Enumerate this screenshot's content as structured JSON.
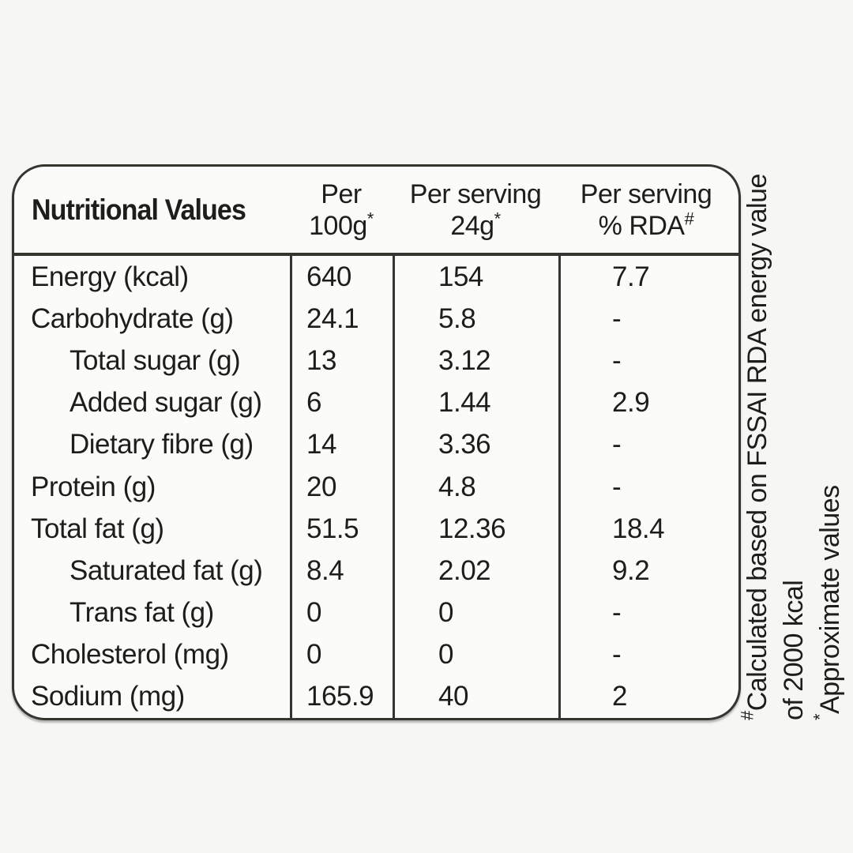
{
  "table": {
    "title": "Nutritional Values",
    "columns": [
      {
        "line1": "Per",
        "line2": "100g",
        "sup": "*"
      },
      {
        "line1": "Per serving",
        "line2": "24g",
        "sup": "*"
      },
      {
        "line1": "Per serving",
        "line2": "% RDA",
        "sup": "#"
      }
    ],
    "rows": [
      {
        "label": "Energy (kcal)",
        "indent": false,
        "per100": "640",
        "serving": "154",
        "rda": "7.7"
      },
      {
        "label": "Carbohydrate (g)",
        "indent": false,
        "per100": "24.1",
        "serving": "5.8",
        "rda": "-"
      },
      {
        "label": "Total sugar (g)",
        "indent": true,
        "per100": "13",
        "serving": "3.12",
        "rda": "-"
      },
      {
        "label": "Added sugar (g)",
        "indent": true,
        "per100": "6",
        "serving": "1.44",
        "rda": "2.9"
      },
      {
        "label": "Dietary fibre (g)",
        "indent": true,
        "per100": "14",
        "serving": "3.36",
        "rda": "-"
      },
      {
        "label": "Protein (g)",
        "indent": false,
        "per100": "20",
        "serving": "4.8",
        "rda": "-"
      },
      {
        "label": "Total fat (g)",
        "indent": false,
        "per100": "51.5",
        "serving": "12.36",
        "rda": "18.4"
      },
      {
        "label": "Saturated fat (g)",
        "indent": true,
        "per100": "8.4",
        "serving": "2.02",
        "rda": "9.2"
      },
      {
        "label": "Trans fat (g)",
        "indent": true,
        "per100": "0",
        "serving": "0",
        "rda": "-"
      },
      {
        "label": "Cholesterol (mg)",
        "indent": false,
        "per100": "0",
        "serving": "0",
        "rda": "-"
      },
      {
        "label": "Sodium (mg)",
        "indent": false,
        "per100": "165.9",
        "serving": "40",
        "rda": "2"
      }
    ]
  },
  "footnotes": {
    "rda_note": {
      "marker": "#",
      "line1": "Calculated based on FSSAI RDA energy value",
      "line2": "of 2000 kcal"
    },
    "approx_note": {
      "marker": "*",
      "text": "Approximate values"
    }
  },
  "colors": {
    "page_background": "#f6f6f4",
    "table_background": "#fbfbf9",
    "line": "#35352f",
    "text": "#1d1d1b"
  }
}
